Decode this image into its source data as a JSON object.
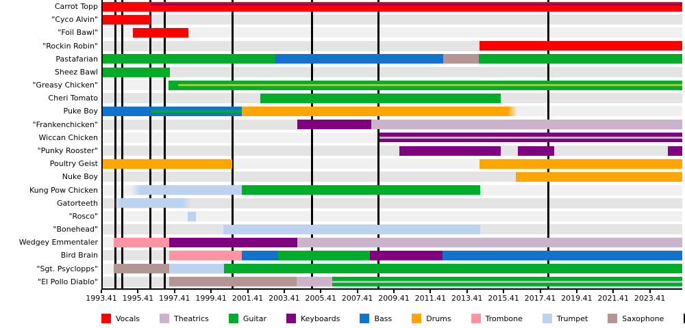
{
  "chart_data": {
    "type": "timeline",
    "description": "Band members timeline: rows are members, colored bars are instrument tenures, vertical black lines are studio albums",
    "x_axis": {
      "min": 1993.41,
      "max": 2025.11,
      "tick_interval": 2,
      "ticks": [
        1993.41,
        1995.41,
        1997.41,
        1999.41,
        2001.41,
        2003.41,
        2005.41,
        2007.41,
        2009.41,
        2011.41,
        2013.41,
        2015.41,
        2017.41,
        2019.41,
        2021.41,
        2023.41
      ]
    },
    "legend": [
      {
        "label": "Vocals",
        "color": "#ff0000"
      },
      {
        "label": "Theatrics",
        "color": "#cbb3cb"
      },
      {
        "label": "Guitar",
        "color": "#00ad2b"
      },
      {
        "label": "Keyboards",
        "color": "#800080"
      },
      {
        "label": "Bass",
        "color": "#1173ce"
      },
      {
        "label": "Drums",
        "color": "#ffa500"
      },
      {
        "label": "Trombone",
        "color": "#ff93a2"
      },
      {
        "label": "Trumpet",
        "color": "#bdd2f1"
      },
      {
        "label": "Saxophone",
        "color": "#b59494"
      },
      {
        "label": "St",
        "color": "#000000"
      }
    ],
    "album_lines": {
      "color": "#000000",
      "years": [
        1994.12,
        1994.46,
        1996.0,
        1996.79,
        2000.5,
        2004.86,
        2008.5,
        2017.8
      ]
    },
    "members": [
      {
        "name": "Carrot Topp",
        "segments": [
          {
            "instrument": "Vocals",
            "start": 1993.41,
            "end": 2025.11
          }
        ],
        "overlays": [
          {
            "instrument": "Keyboards",
            "start": 1996.05,
            "end": 2025.11,
            "pos": "top"
          }
        ]
      },
      {
        "name": "\"Cyco Alvin\"",
        "segments": [
          {
            "instrument": "Vocals",
            "start": 1993.41,
            "end": 1996.05
          }
        ]
      },
      {
        "name": "\"Foil Bawl\"",
        "segments": [
          {
            "instrument": "Vocals",
            "start": 1995.06,
            "end": 1998.08
          }
        ]
      },
      {
        "name": "\"Rockin Robin\"",
        "segments": [
          {
            "instrument": "Vocals",
            "start": 2014.0,
            "end": 2025.11
          }
        ]
      },
      {
        "name": "Pastafarian",
        "segments": [
          {
            "instrument": "Guitar",
            "start": 1993.41,
            "end": 2002.87
          },
          {
            "instrument": "Bass",
            "start": 2002.87,
            "end": 2012.02
          },
          {
            "instrument": "Saxophone",
            "start": 2012.02,
            "end": 2013.97
          },
          {
            "instrument": "Guitar",
            "start": 2013.97,
            "end": 2025.11
          }
        ]
      },
      {
        "name": "Sheez Bawl",
        "segments": [
          {
            "instrument": "Guitar",
            "start": 1993.41,
            "end": 1997.08
          }
        ]
      },
      {
        "name": "\"Greasy Chicken\"",
        "segments": [
          {
            "instrument": "Guitar",
            "start": 1997.0,
            "end": 2025.11
          }
        ],
        "overlays": [
          {
            "instrument": "Drums",
            "start": 1997.55,
            "end": 2025.11,
            "pos": "mid"
          }
        ]
      },
      {
        "name": "Cheri Tomato",
        "segments": [
          {
            "instrument": "Guitar",
            "start": 2002.04,
            "end": 2015.18
          }
        ]
      },
      {
        "name": "Puke Boy",
        "segments": [
          {
            "instrument": "Bass",
            "start": 1993.41,
            "end": 2001.0
          },
          {
            "instrument": "Drums",
            "start": 2001.0,
            "end": 2016.08,
            "fade": "right"
          }
        ],
        "overlays": [
          {
            "instrument": "Guitar",
            "start": 1996.05,
            "end": 2001.0,
            "pos": "mid"
          }
        ]
      },
      {
        "name": "\"Frankenchicken\"",
        "segments": [
          {
            "instrument": "Keyboards",
            "start": 2004.07,
            "end": 2008.08
          },
          {
            "instrument": "Theatrics",
            "start": 2008.08,
            "end": 2025.11
          }
        ]
      },
      {
        "name": "Wiccan Chicken",
        "segments": [
          {
            "instrument": "Keyboards",
            "start": 2008.56,
            "end": 2025.11
          }
        ],
        "overlays": [
          {
            "instrument": "Theatrics",
            "start": 2008.56,
            "end": 2025.11,
            "pos": "mid"
          }
        ]
      },
      {
        "name": "\"Punky Rooster\"",
        "segments": [
          {
            "instrument": "Keyboards",
            "start": 2009.62,
            "end": 2015.17
          },
          {
            "instrument": "Keyboards",
            "start": 2016.11,
            "end": 2018.1
          },
          {
            "instrument": "Keyboards",
            "start": 2024.33,
            "end": 2025.11
          }
        ]
      },
      {
        "name": "Poultry Geist",
        "segments": [
          {
            "instrument": "Drums",
            "start": 1993.41,
            "end": 2000.5
          },
          {
            "instrument": "Drums",
            "start": 2014.0,
            "end": 2025.11
          }
        ]
      },
      {
        "name": "Nuke Boy",
        "segments": [
          {
            "instrument": "Drums",
            "start": 2016.0,
            "end": 2025.11
          }
        ]
      },
      {
        "name": "Kung Pow Chicken",
        "segments": [
          {
            "instrument": "Trumpet",
            "start": 1994.95,
            "end": 2001.0,
            "fade": "left"
          },
          {
            "instrument": "Guitar",
            "start": 2001.0,
            "end": 2014.05
          }
        ]
      },
      {
        "name": "Gatorteeth",
        "segments": [
          {
            "instrument": "Trumpet",
            "start": 1994.0,
            "end": 1998.25,
            "fade": "both"
          }
        ]
      },
      {
        "name": "\"Rosco\"",
        "segments": [
          {
            "instrument": "Trumpet",
            "start": 1998.07,
            "end": 1998.5
          }
        ]
      },
      {
        "name": "\"Bonehead\"",
        "segments": [
          {
            "instrument": "Trumpet",
            "start": 2000.0,
            "end": 2014.05
          }
        ]
      },
      {
        "name": "Wedgey Emmentaler",
        "segments": [
          {
            "instrument": "Trombone",
            "start": 1994.0,
            "end": 1997.05
          },
          {
            "instrument": "Keyboards",
            "start": 1997.05,
            "end": 2004.07
          },
          {
            "instrument": "Theatrics",
            "start": 2004.07,
            "end": 2025.11
          }
        ]
      },
      {
        "name": "Bird Brain",
        "segments": [
          {
            "instrument": "Trombone",
            "start": 1997.05,
            "end": 2001.0
          },
          {
            "instrument": "Bass",
            "start": 2001.0,
            "end": 2003.0
          },
          {
            "instrument": "Guitar",
            "start": 2003.0,
            "end": 2008.03
          },
          {
            "instrument": "Keyboards",
            "start": 2008.03,
            "end": 2012.0
          },
          {
            "instrument": "Bass",
            "start": 2012.0,
            "end": 2025.11
          }
        ]
      },
      {
        "name": "\"Sgt. Psyclopps\"",
        "segments": [
          {
            "instrument": "Saxophone",
            "start": 1994.0,
            "end": 1997.05
          },
          {
            "instrument": "Trumpet",
            "start": 1997.05,
            "end": 2000.05
          },
          {
            "instrument": "Guitar",
            "start": 2000.05,
            "end": 2025.11
          }
        ]
      },
      {
        "name": "\"El Pollo Diablo\"",
        "segments": [
          {
            "instrument": "Saxophone",
            "start": 1997.05,
            "end": 2004.0
          },
          {
            "instrument": "Theatrics",
            "start": 2004.0,
            "end": 2005.95
          },
          {
            "instrument": "Guitar",
            "start": 2005.95,
            "end": 2025.11
          }
        ],
        "overlays": [
          {
            "instrument": "Theatrics",
            "start": 2005.95,
            "end": 2025.11,
            "pos": "mid"
          }
        ]
      }
    ]
  }
}
